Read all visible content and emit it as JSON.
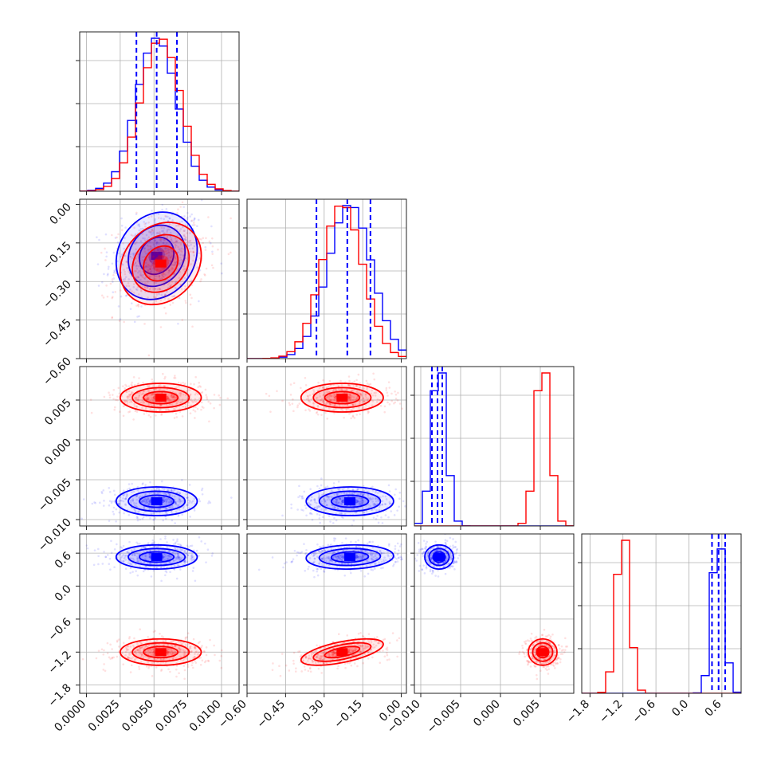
{
  "chart_data": {
    "type": "scatter",
    "title": "",
    "series": [
      {
        "name": "",
        "color": "#0000ff",
        "mean": [
          0.0052,
          -0.2,
          -0.0077,
          0.53
        ],
        "std": [
          0.0015,
          0.085,
          0.0009,
          0.11
        ],
        "corr": [
          [
            1,
            0.15,
            0,
            0
          ],
          [
            0.15,
            1,
            0,
            0.1
          ],
          [
            0,
            0,
            1,
            0
          ],
          [
            0,
            0.1,
            0,
            1
          ]
        ]
      },
      {
        "name": "",
        "color": "#ff0000",
        "mean": [
          0.0055,
          -0.23,
          0.0053,
          -1.2
        ],
        "std": [
          0.0015,
          0.08,
          0.0009,
          0.12
        ],
        "corr": [
          [
            1,
            0.2,
            0,
            0
          ],
          [
            0.2,
            1,
            0,
            0.6
          ],
          [
            0,
            0,
            1,
            0
          ],
          [
            0,
            0.6,
            0,
            1
          ]
        ]
      }
    ],
    "params": [
      {
        "range": [
          -0.0005,
          0.0113
        ],
        "ticks": [
          0.0,
          0.0025,
          0.005,
          0.0075,
          0.01
        ],
        "tick_labels": [
          "0.0000",
          "0.0025",
          "0.0050",
          "0.0075",
          "0.0100"
        ]
      },
      {
        "range": [
          -0.6,
          0.02
        ],
        "ticks": [
          -0.6,
          -0.45,
          -0.3,
          -0.15,
          0.0
        ],
        "tick_labels": [
          "−0.60",
          "−0.45",
          "−0.30",
          "−0.15",
          "0.00"
        ]
      },
      {
        "range": [
          -0.0108,
          0.0092
        ],
        "ticks": [
          -0.01,
          -0.005,
          0.0,
          0.005
        ],
        "tick_labels": [
          "−0.010",
          "−0.005",
          "0.000",
          "0.005"
        ]
      },
      {
        "range": [
          -1.95,
          0.95
        ],
        "ticks": [
          -1.8,
          -1.2,
          -0.6,
          0.0,
          0.6
        ],
        "tick_labels": [
          "−1.8",
          "−1.2",
          "−0.6",
          "0.0",
          "0.6"
        ]
      }
    ],
    "quantile_lines": [
      [
        0.0037,
        0.0052,
        0.0067
      ],
      [
        -0.33,
        -0.21,
        -0.12
      ],
      [
        -0.0086,
        -0.0079,
        -0.0073
      ],
      [
        0.42,
        0.54,
        0.66
      ]
    ],
    "quantile_line_color": "#0000ff",
    "grid": true,
    "layout": "corner"
  }
}
